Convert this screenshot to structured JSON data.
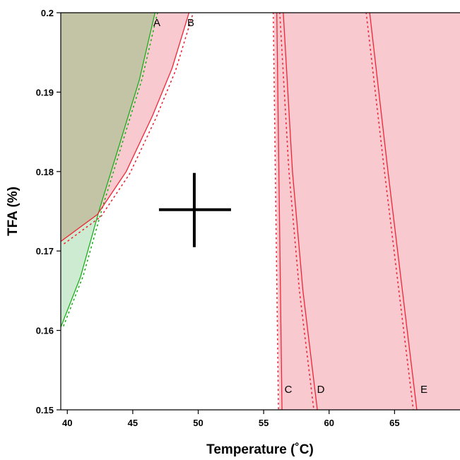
{
  "chart_data": {
    "type": "contour",
    "title": "",
    "xlabel": "Temperature (˚C)",
    "ylabel": "TFA (%)",
    "xlim": [
      39.5,
      70.0
    ],
    "ylim": [
      0.15,
      0.2
    ],
    "x_ticks": [
      40,
      45,
      50,
      55,
      60,
      65
    ],
    "y_ticks": [
      0.15,
      0.16,
      0.17,
      0.18,
      0.19,
      0.2
    ],
    "x_tick_labels": [
      "40",
      "45",
      "50",
      "55",
      "60",
      "65"
    ],
    "y_tick_labels": [
      "0.15",
      "0.16",
      "0.17",
      "0.18",
      "0.19",
      "0.2"
    ],
    "grid": false,
    "colors": {
      "red_region": "#f9c9d0",
      "green_region": "#cdebd0",
      "overlap_region": "#c3c4a6",
      "red_line": "#ee2636",
      "green_line": "#1aaf1a"
    },
    "crosshair": {
      "x": 49.7,
      "y": 0.1752
    },
    "contours": [
      {
        "label": "A",
        "color": "green",
        "points": [
          [
            39.5,
            0.1604
          ],
          [
            41.0,
            0.1667
          ],
          [
            42.5,
            0.1755
          ],
          [
            44.0,
            0.1835
          ],
          [
            45.5,
            0.1915
          ],
          [
            46.7,
            0.2
          ]
        ]
      },
      {
        "label": "B",
        "color": "red",
        "points": [
          [
            39.5,
            0.1712
          ],
          [
            42.3,
            0.1746
          ],
          [
            44.5,
            0.18
          ],
          [
            46.5,
            0.187
          ],
          [
            48.0,
            0.193
          ],
          [
            49.3,
            0.2
          ]
        ]
      },
      {
        "label": "C",
        "color": "red",
        "points": [
          [
            56.0,
            0.2
          ],
          [
            56.2,
            0.175
          ],
          [
            56.4,
            0.15
          ]
        ]
      },
      {
        "label": "D",
        "color": "red",
        "points": [
          [
            56.5,
            0.2
          ],
          [
            57.2,
            0.18
          ],
          [
            58.0,
            0.165
          ],
          [
            59.1,
            0.15
          ]
        ]
      },
      {
        "label": "E",
        "color": "red",
        "points": [
          [
            63.1,
            0.2
          ],
          [
            64.5,
            0.18
          ],
          [
            65.6,
            0.165
          ],
          [
            66.7,
            0.15
          ]
        ]
      }
    ]
  }
}
